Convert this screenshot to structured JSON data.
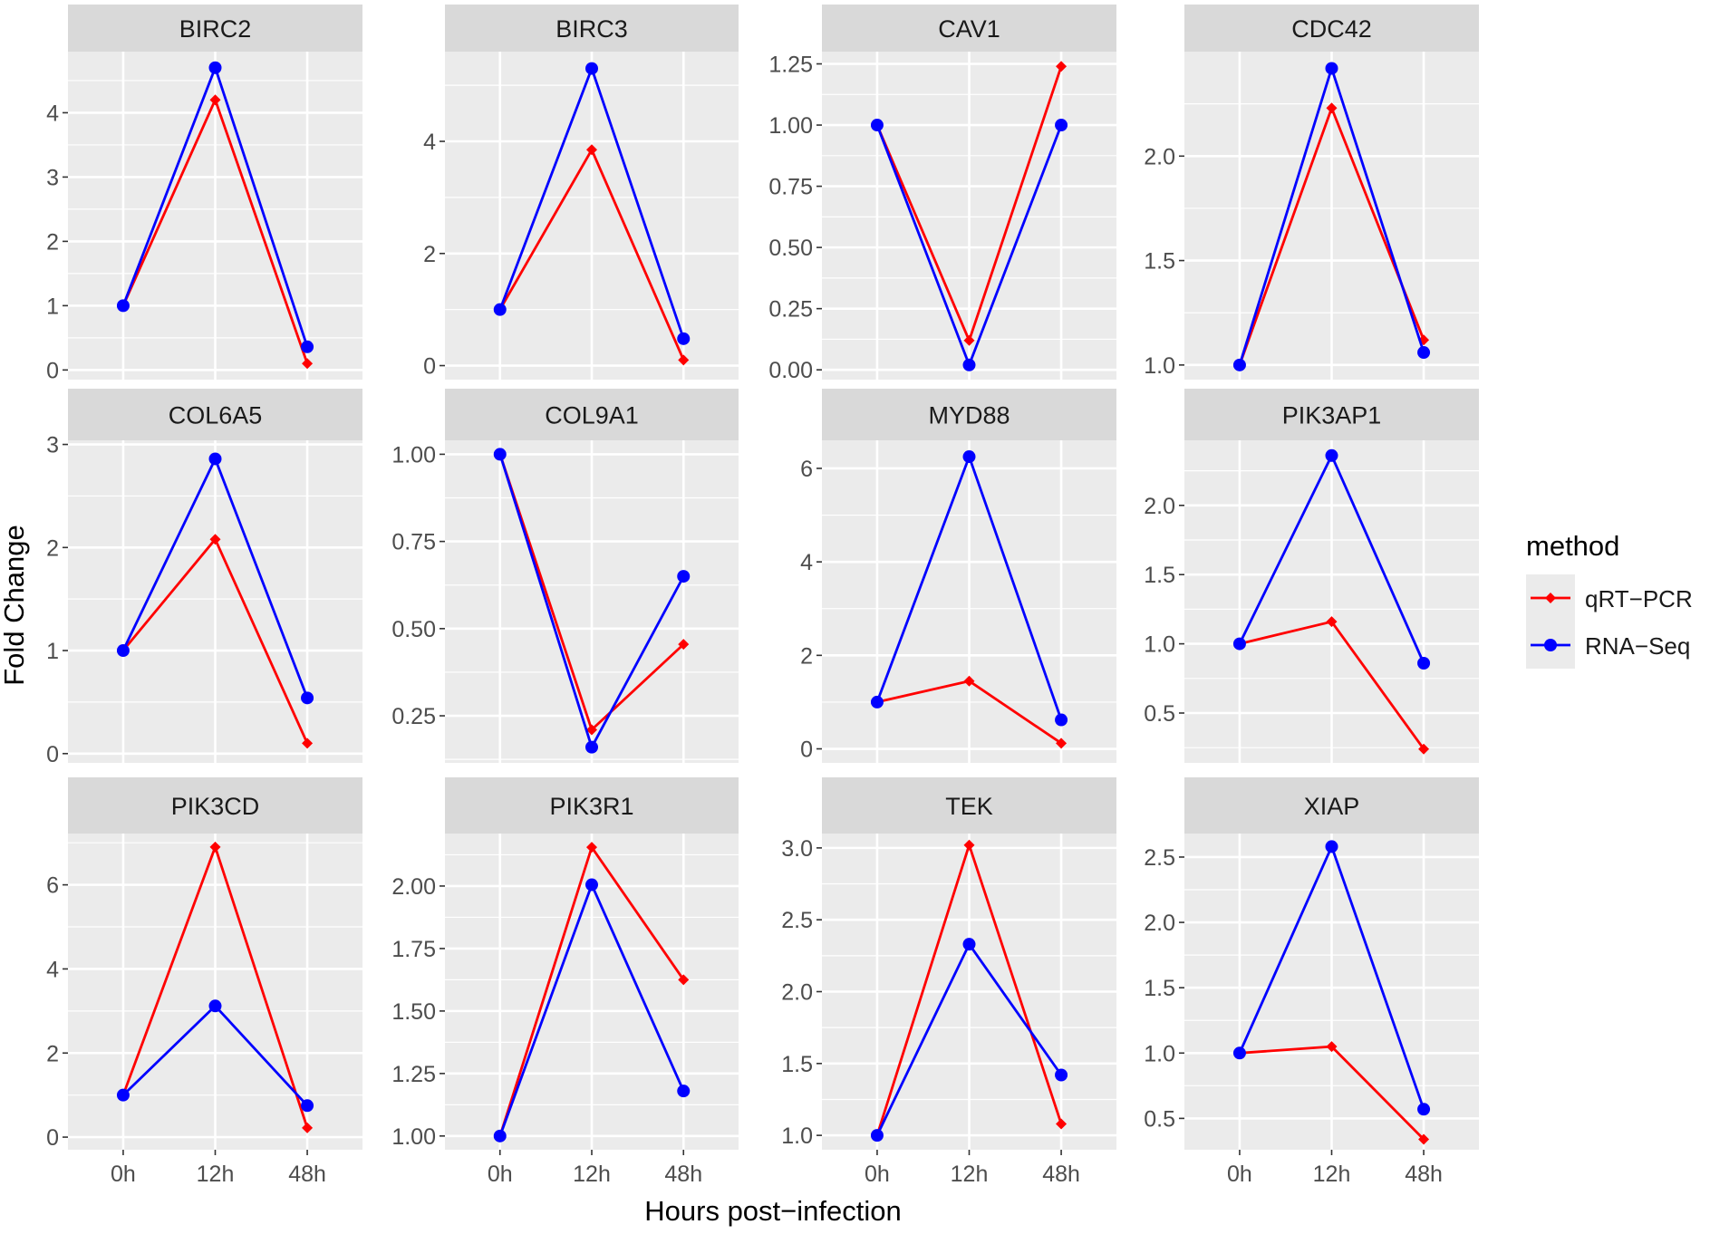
{
  "chart_data": {
    "type": "line",
    "layout": "facet-grid",
    "categories": [
      "0h",
      "12h",
      "48h"
    ],
    "xlabel": "Hours post−infection",
    "ylabel": "Fold Change",
    "legend": {
      "title": "method",
      "position": "right",
      "entries": [
        {
          "name": "qRT−PCR",
          "color": "#ff0000",
          "marker": "diamond"
        },
        {
          "name": "RNA−Seq",
          "color": "#0000ff",
          "marker": "circle"
        }
      ]
    },
    "series_names": [
      "qRT−PCR",
      "RNA−Seq"
    ],
    "facets": [
      {
        "title": "BIRC2",
        "ylim": [
          -0.15,
          4.95
        ],
        "ticks": [
          0,
          1,
          2,
          3,
          4
        ],
        "tick_labels": [
          "0",
          "1",
          "2",
          "3",
          "4"
        ],
        "series": [
          {
            "name": "qRT−PCR",
            "values": [
              1.0,
              4.2,
              0.1
            ]
          },
          {
            "name": "RNA−Seq",
            "values": [
              1.0,
              4.7,
              0.36
            ]
          }
        ]
      },
      {
        "title": "BIRC3",
        "ylim": [
          -0.25,
          5.6
        ],
        "ticks": [
          0,
          2,
          4
        ],
        "tick_labels": [
          "0",
          "2",
          "4"
        ],
        "series": [
          {
            "name": "qRT−PCR",
            "values": [
              1.0,
              3.85,
              0.1
            ]
          },
          {
            "name": "RNA−Seq",
            "values": [
              1.0,
              5.3,
              0.48
            ]
          }
        ]
      },
      {
        "title": "CAV1",
        "ylim": [
          -0.04,
          1.3
        ],
        "ticks": [
          0,
          0.25,
          0.5,
          0.75,
          1.0,
          1.25
        ],
        "tick_labels": [
          "0.00",
          "0.25",
          "0.50",
          "0.75",
          "1.00",
          "1.25"
        ],
        "series": [
          {
            "name": "qRT−PCR",
            "values": [
              1.0,
              0.12,
              1.24
            ]
          },
          {
            "name": "RNA−Seq",
            "values": [
              1.0,
              0.02,
              1.0
            ]
          }
        ]
      },
      {
        "title": "CDC42",
        "ylim": [
          0.93,
          2.5
        ],
        "ticks": [
          1.0,
          1.5,
          2.0
        ],
        "tick_labels": [
          "1.0",
          "1.5",
          "2.0"
        ],
        "series": [
          {
            "name": "qRT−PCR",
            "values": [
              1.0,
              2.23,
              1.12
            ]
          },
          {
            "name": "RNA−Seq",
            "values": [
              1.0,
              2.42,
              1.06
            ]
          }
        ]
      },
      {
        "title": "COL6A5",
        "ylim": [
          -0.09,
          3.04
        ],
        "ticks": [
          0,
          1,
          2,
          3
        ],
        "tick_labels": [
          "0",
          "1",
          "2",
          "3"
        ],
        "series": [
          {
            "name": "qRT−PCR",
            "values": [
              1.0,
              2.08,
              0.1
            ]
          },
          {
            "name": "RNA−Seq",
            "values": [
              1.0,
              2.86,
              0.54
            ]
          }
        ]
      },
      {
        "title": "COL9A1",
        "ylim": [
          0.115,
          1.04
        ],
        "ticks": [
          0.25,
          0.5,
          0.75,
          1.0
        ],
        "tick_labels": [
          "0.25",
          "0.50",
          "0.75",
          "1.00"
        ],
        "series": [
          {
            "name": "qRT−PCR",
            "values": [
              1.0,
              0.21,
              0.455
            ]
          },
          {
            "name": "RNA−Seq",
            "values": [
              1.0,
              0.16,
              0.65
            ]
          }
        ]
      },
      {
        "title": "MYD88",
        "ylim": [
          -0.3,
          6.6
        ],
        "ticks": [
          0,
          2,
          4,
          6
        ],
        "tick_labels": [
          "0",
          "2",
          "4",
          "6"
        ],
        "series": [
          {
            "name": "qRT−PCR",
            "values": [
              1.0,
              1.45,
              0.12
            ]
          },
          {
            "name": "RNA−Seq",
            "values": [
              1.0,
              6.25,
              0.62
            ]
          }
        ]
      },
      {
        "title": "PIK3AP1",
        "ylim": [
          0.14,
          2.47
        ],
        "ticks": [
          0.5,
          1.0,
          1.5,
          2.0
        ],
        "tick_labels": [
          "0.5",
          "1.0",
          "1.5",
          "2.0"
        ],
        "series": [
          {
            "name": "qRT−PCR",
            "values": [
              1.0,
              1.16,
              0.24
            ]
          },
          {
            "name": "RNA−Seq",
            "values": [
              1.0,
              2.36,
              0.86
            ]
          }
        ]
      },
      {
        "title": "PIK3CD",
        "ylim": [
          -0.3,
          7.22
        ],
        "ticks": [
          0,
          2,
          4,
          6
        ],
        "tick_labels": [
          "0",
          "2",
          "4",
          "6"
        ],
        "series": [
          {
            "name": "qRT−PCR",
            "values": [
              1.0,
              6.9,
              0.22
            ]
          },
          {
            "name": "RNA−Seq",
            "values": [
              1.0,
              3.12,
              0.75
            ]
          }
        ]
      },
      {
        "title": "PIK3R1",
        "ylim": [
          0.945,
          2.21
        ],
        "ticks": [
          1.0,
          1.25,
          1.5,
          1.75,
          2.0
        ],
        "tick_labels": [
          "1.00",
          "1.25",
          "1.50",
          "1.75",
          "2.00"
        ],
        "series": [
          {
            "name": "qRT−PCR",
            "values": [
              1.0,
              2.155,
              1.625
            ]
          },
          {
            "name": "RNA−Seq",
            "values": [
              1.0,
              2.005,
              1.18
            ]
          }
        ]
      },
      {
        "title": "TEK",
        "ylim": [
          0.9,
          3.1
        ],
        "ticks": [
          1.0,
          1.5,
          2.0,
          2.5,
          3.0
        ],
        "tick_labels": [
          "1.0",
          "1.5",
          "2.0",
          "2.5",
          "3.0"
        ],
        "series": [
          {
            "name": "qRT−PCR",
            "values": [
              1.0,
              3.02,
              1.08
            ]
          },
          {
            "name": "RNA−Seq",
            "values": [
              1.0,
              2.33,
              1.42
            ]
          }
        ]
      },
      {
        "title": "XIAP",
        "ylim": [
          0.26,
          2.68
        ],
        "ticks": [
          0.5,
          1.0,
          1.5,
          2.0,
          2.5
        ],
        "tick_labels": [
          "0.5",
          "1.0",
          "1.5",
          "2.0",
          "2.5"
        ],
        "series": [
          {
            "name": "qRT−PCR",
            "values": [
              1.0,
              1.05,
              0.34
            ]
          },
          {
            "name": "RNA−Seq",
            "values": [
              1.0,
              2.58,
              0.57
            ]
          }
        ]
      }
    ]
  }
}
